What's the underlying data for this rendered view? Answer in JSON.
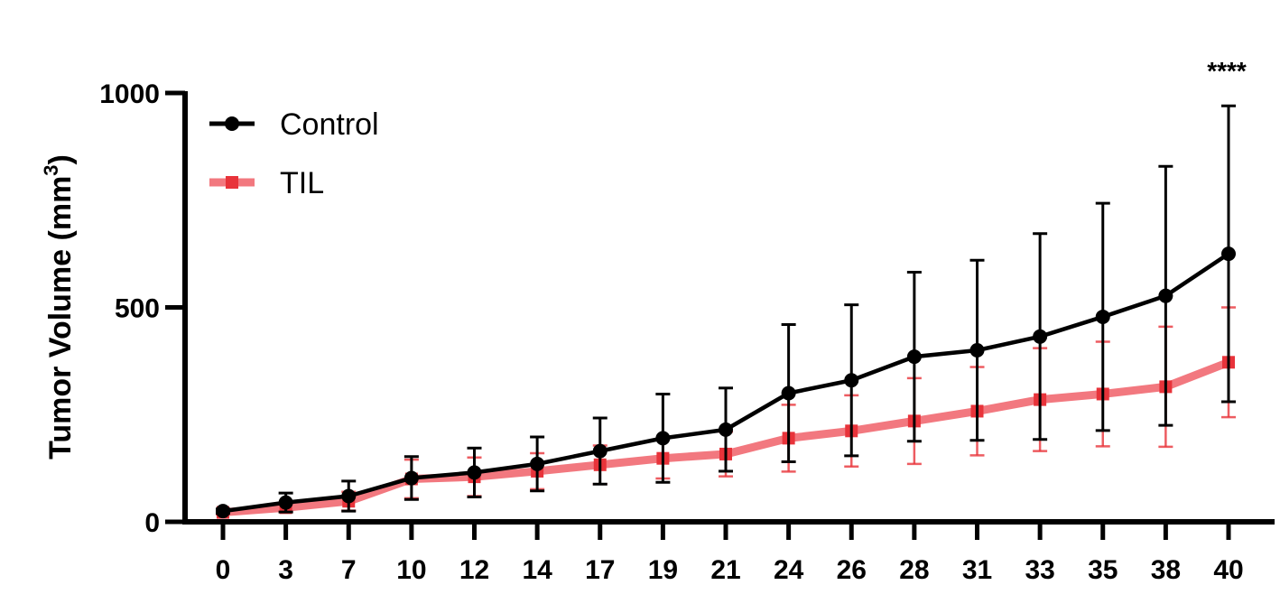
{
  "chart_data": {
    "type": "line",
    "ylabel": "Tumor Volume (mm",
    "ylabel_superscript": "3",
    "ylabel_close": ")",
    "xlabel": "",
    "ylim": [
      0,
      1000
    ],
    "y_ticks": [
      0,
      500,
      1000
    ],
    "y_tick_labels": [
      "0",
      "500",
      "1000"
    ],
    "categories": [
      "0",
      "3",
      "7",
      "10",
      "12",
      "14",
      "17",
      "19",
      "21",
      "24",
      "26",
      "28",
      "31",
      "33",
      "35",
      "38",
      "40"
    ],
    "legend_position": "top-left",
    "annotation": "****",
    "series": [
      {
        "name": "Control",
        "color": "#000000",
        "marker": "circle",
        "values": [
          25,
          45,
          60,
          102,
          115,
          135,
          165,
          195,
          215,
          300,
          330,
          385,
          400,
          432,
          478,
          527,
          625
        ],
        "error": [
          5,
          22,
          35,
          50,
          57,
          63,
          77,
          103,
          97,
          160,
          176,
          197,
          210,
          240,
          265,
          302,
          345
        ]
      },
      {
        "name": "TIL",
        "color": "#e8333a",
        "marker": "square",
        "values": [
          22,
          33,
          48,
          100,
          105,
          118,
          133,
          148,
          158,
          195,
          212,
          235,
          258,
          285,
          298,
          315,
          372
        ],
        "error": [
          5,
          10,
          22,
          45,
          45,
          42,
          45,
          47,
          52,
          78,
          83,
          100,
          103,
          120,
          122,
          140,
          128
        ]
      }
    ]
  }
}
